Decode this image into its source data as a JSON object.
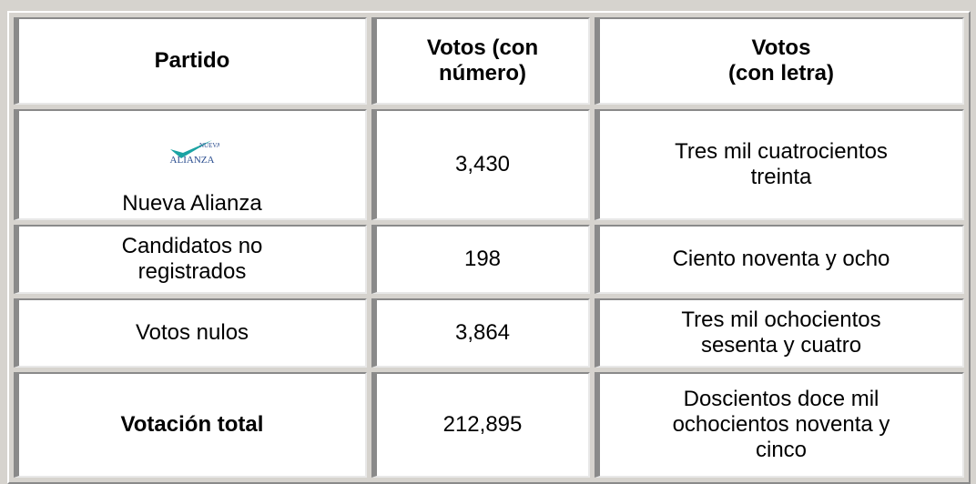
{
  "table": {
    "header": [
      "Partido",
      "Votos (con\nnúmero)",
      "Votos\n(con letra)"
    ],
    "logo": [
      "NUEVA",
      "ALIANZA"
    ],
    "rows": [
      [
        "Nueva Alianza",
        "3,430",
        "Tres mil cuatrocientos\ntreinta"
      ],
      [
        "Candidatos no\nregistrados",
        "198",
        "Ciento noventa y ocho"
      ],
      [
        "Votos nulos",
        "3,864",
        "Tres mil ochocientos\nsesenta y cuatro"
      ],
      [
        "Votación total",
        "212,895",
        "Doscientos doce mil\nochocientos noventa y\ncinco"
      ]
    ]
  }
}
